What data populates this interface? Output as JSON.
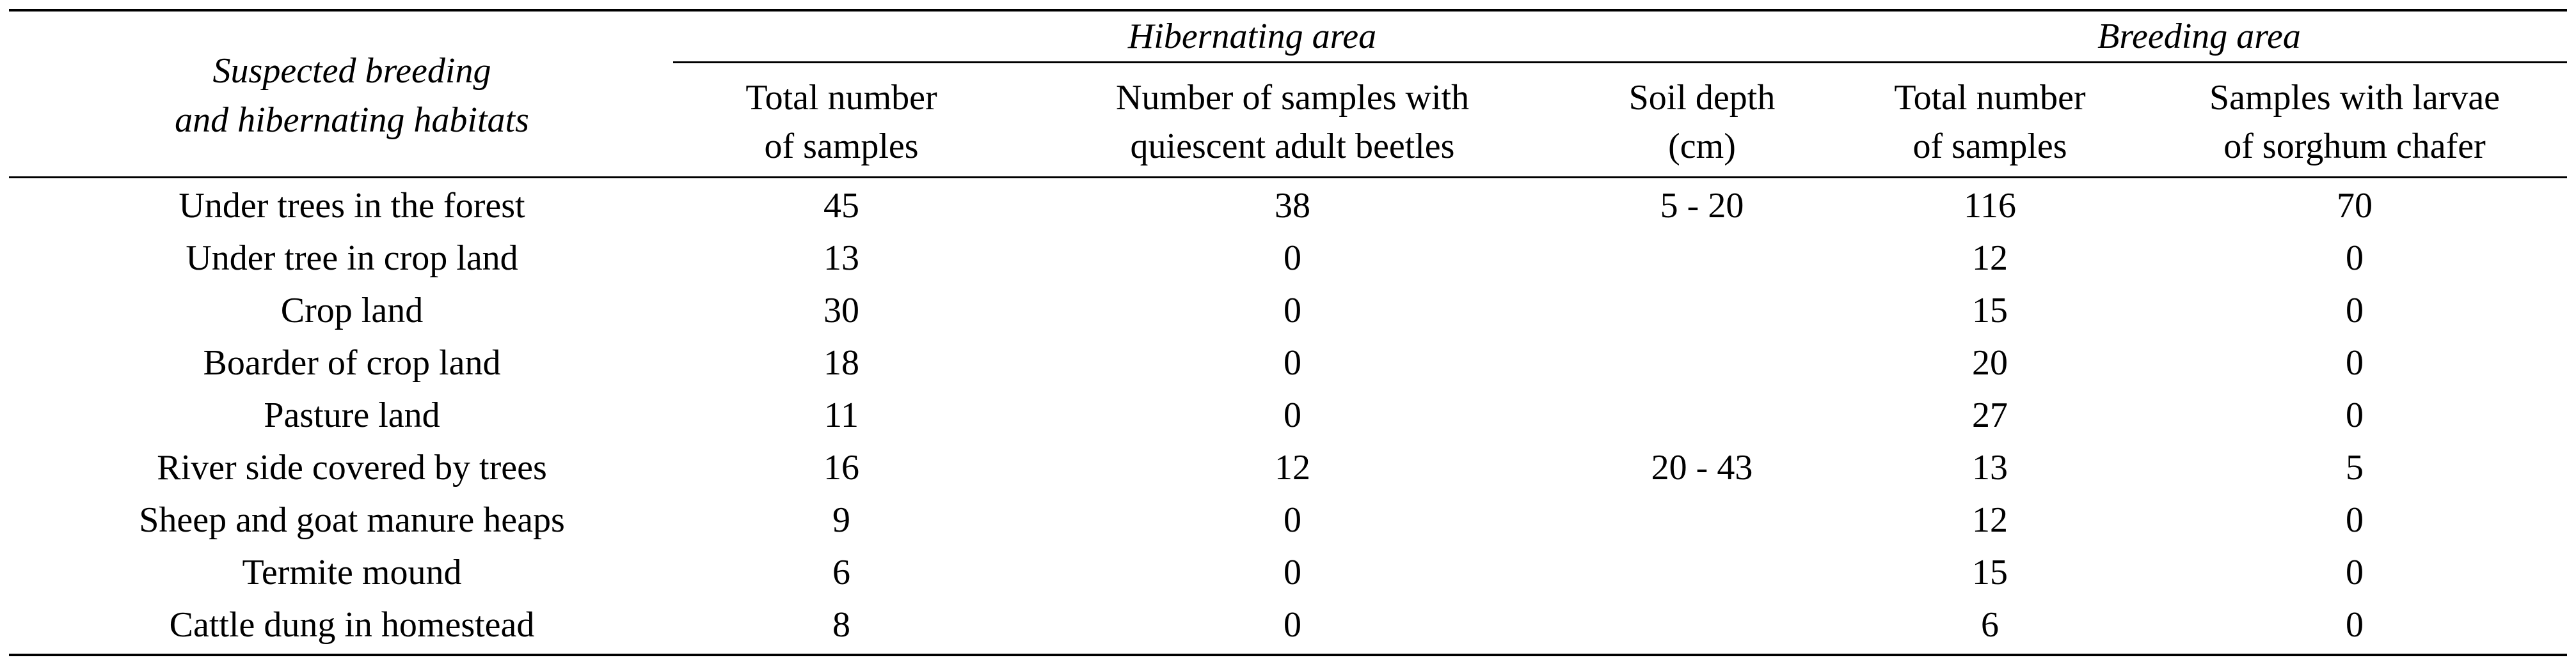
{
  "table": {
    "stub_header": [
      "Suspected breeding",
      "and hibernating habitats"
    ],
    "group_headers": [
      "Hibernating area",
      "Breeding area"
    ],
    "column_headers": [
      [
        "Total number",
        "of samples"
      ],
      [
        "Number of samples with",
        "quiescent adult beetles"
      ],
      [
        "Soil depth",
        "(cm)"
      ],
      [
        "Total number",
        "of samples"
      ],
      [
        "Samples with larvae",
        "of sorghum chafer"
      ]
    ],
    "rows": [
      [
        "Under trees in the forest",
        "45",
        "38",
        "5 - 20",
        "116",
        "70"
      ],
      [
        "Under tree in crop land",
        "13",
        "0",
        "",
        "12",
        "0"
      ],
      [
        "Crop land",
        "30",
        "0",
        "",
        "15",
        "0"
      ],
      [
        "Boarder of crop land",
        "18",
        "0",
        "",
        "20",
        "0"
      ],
      [
        "Pasture land",
        "11",
        "0",
        "",
        "27",
        "0"
      ],
      [
        "River side covered by trees",
        "16",
        "12",
        "20 - 43",
        "13",
        "5"
      ],
      [
        "Sheep and goat manure heaps",
        "9",
        "0",
        "",
        "12",
        "0"
      ],
      [
        "Termite mound",
        "6",
        "0",
        "",
        "15",
        "0"
      ],
      [
        "Cattle dung in homestead",
        "8",
        "0",
        "",
        "6",
        "0"
      ]
    ]
  }
}
